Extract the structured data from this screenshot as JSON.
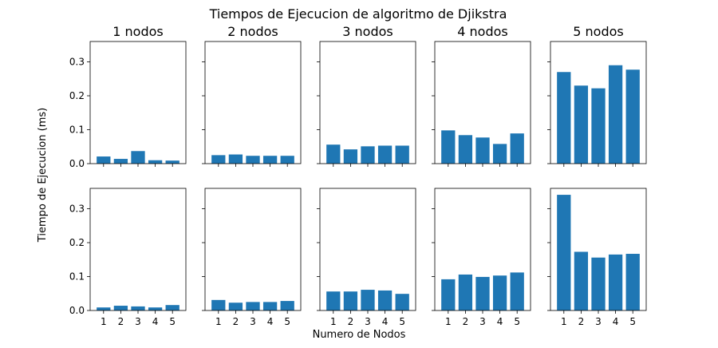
{
  "chart_data": {
    "type": "bar",
    "suptitle": "Tiempos de Ejecucion de algoritmo de Djikstra",
    "xlabel": "Numero de Nodos",
    "ylabel": "Tiempo de Ejecucion (ms)",
    "categories": [
      "1",
      "2",
      "3",
      "4",
      "5"
    ],
    "ylim": [
      0,
      0.36
    ],
    "yticks": [
      "0.0",
      "0.1",
      "0.2",
      "0.3"
    ],
    "yticks_values": [
      0,
      0.1,
      0.2,
      0.3
    ],
    "bar_color": "#1f77b4",
    "column_titles": [
      "1 nodos",
      "2 nodos",
      "3 nodos",
      "4 nodos",
      "5 nodos"
    ],
    "panels": [
      [
        [
          0.021,
          0.014,
          0.037,
          0.01,
          0.009
        ],
        [
          0.025,
          0.027,
          0.023,
          0.023,
          0.023
        ],
        [
          0.056,
          0.042,
          0.051,
          0.053,
          0.053
        ],
        [
          0.098,
          0.084,
          0.077,
          0.058,
          0.089
        ],
        [
          0.27,
          0.23,
          0.222,
          0.29,
          0.277
        ]
      ],
      [
        [
          0.009,
          0.014,
          0.012,
          0.009,
          0.016
        ],
        [
          0.031,
          0.023,
          0.025,
          0.025,
          0.028
        ],
        [
          0.056,
          0.056,
          0.061,
          0.059,
          0.049
        ],
        [
          0.092,
          0.106,
          0.099,
          0.103,
          0.112
        ],
        [
          0.341,
          0.173,
          0.156,
          0.165,
          0.167
        ]
      ]
    ]
  }
}
